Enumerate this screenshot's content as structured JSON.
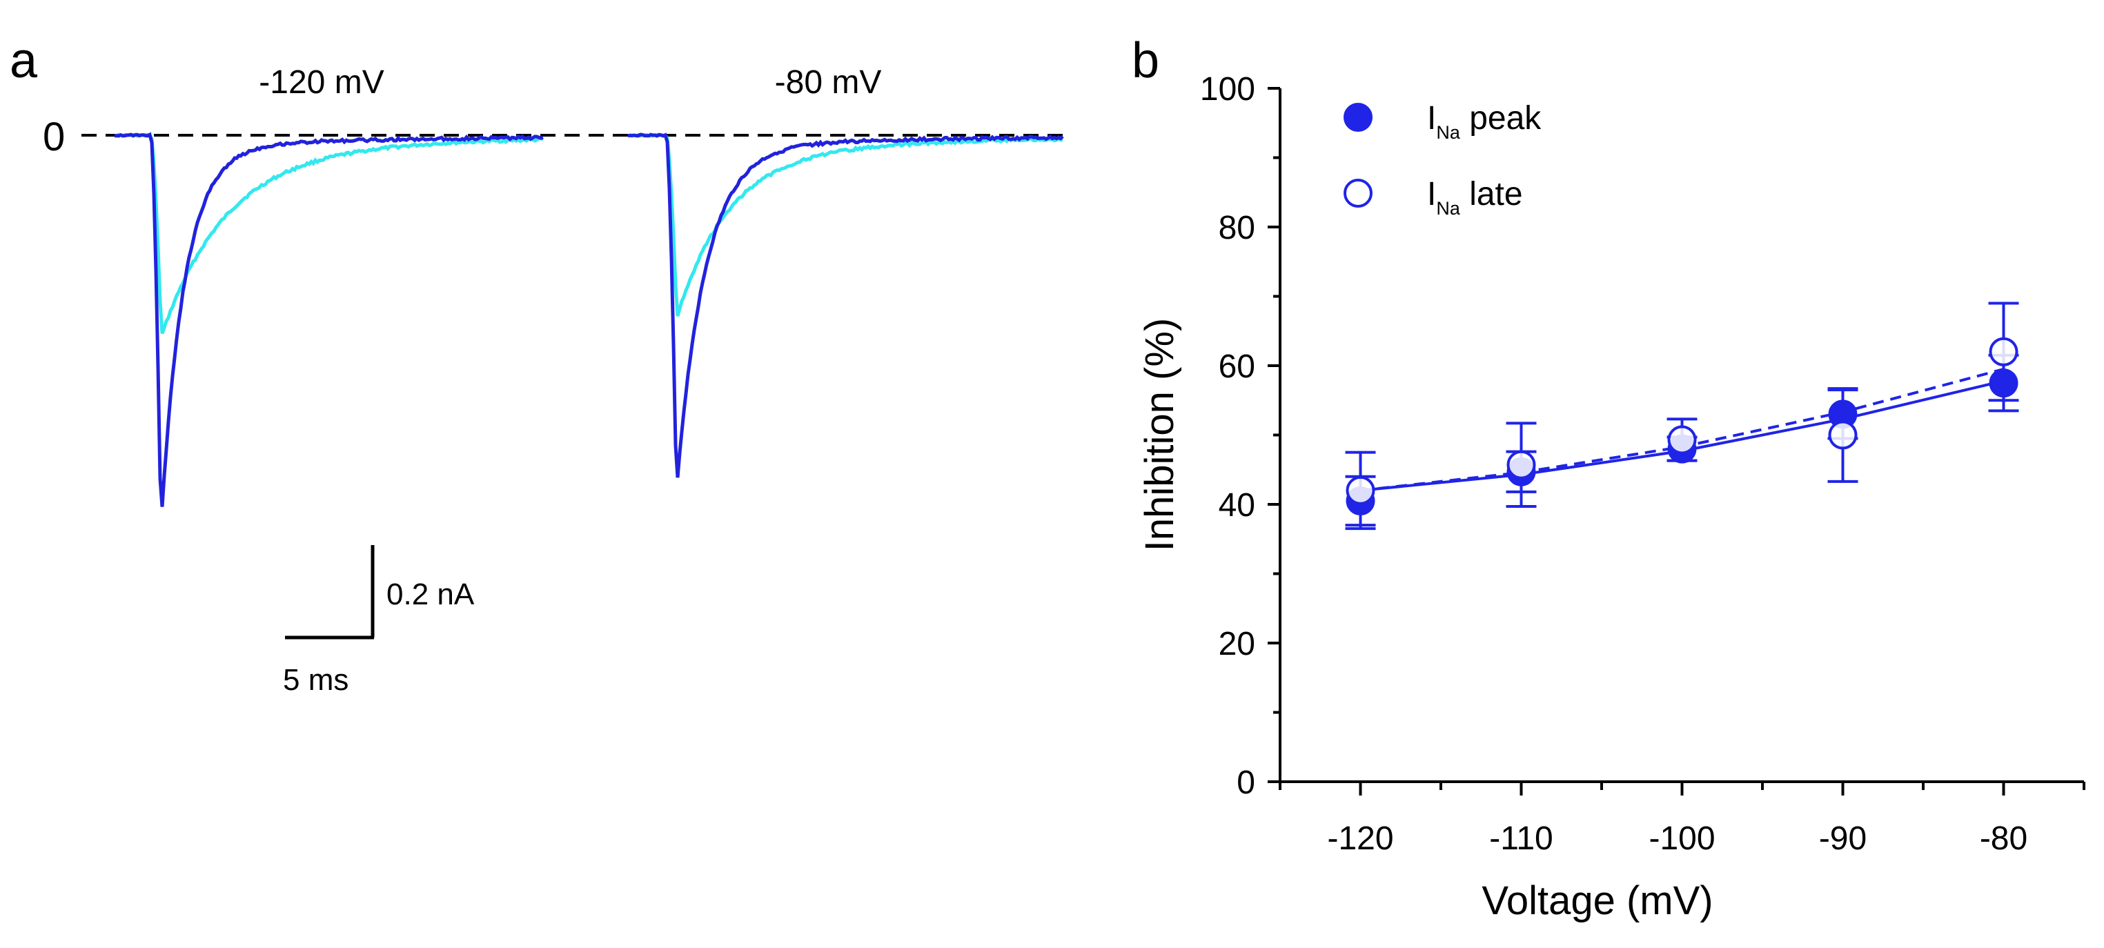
{
  "colors": {
    "control": "#2222dd",
    "drug": "#33e8ee",
    "fit": "#1f24e6",
    "axis": "#000000"
  },
  "panel_a": {
    "label": "a",
    "zero_label": "0",
    "conditions": [
      {
        "label": "-120 mV",
        "peak_nA": -0.83,
        "drug_peak_nA": -0.4,
        "tau_ms": 1.3,
        "drug_tau_ms": 3.6
      },
      {
        "label": "-80 mV",
        "peak_nA": -0.75,
        "drug_peak_nA": -0.36,
        "tau_ms": 1.6,
        "drug_tau_ms": 2.9
      }
    ],
    "scale_bar": {
      "current_label": "0.2 nA",
      "current_nA": 0.2,
      "time_label": "5 ms",
      "time_ms": 5
    }
  },
  "chart_data": {
    "type": "scatter",
    "panel_label": "b",
    "xlabel": "Voltage (mV)",
    "ylabel": "Inhibition (%)",
    "xlim": [
      -125,
      -75
    ],
    "ylim": [
      0,
      100
    ],
    "x_ticks": [
      -120,
      -110,
      -100,
      -90,
      -80
    ],
    "y_ticks": [
      0,
      20,
      40,
      60,
      80,
      100
    ],
    "x_tick_labels": [
      "-120",
      "-110",
      "-100",
      "-90",
      "-80"
    ],
    "y_tick_labels": [
      "0",
      "20",
      "40",
      "60",
      "80",
      "100"
    ],
    "legend_position": "top-left",
    "series": [
      {
        "name": "INa peak",
        "legend_main": "I",
        "legend_sub": "Na",
        "legend_rest": " peak",
        "marker": "filled-circle",
        "line": "solid",
        "x": [
          -120,
          -110,
          -100,
          -90,
          -80
        ],
        "y": [
          40.5,
          44.7,
          48.0,
          53.0,
          57.5
        ],
        "err": [
          3.5,
          2.9,
          1.7,
          3.5,
          4.0
        ],
        "fit_y": [
          42.0,
          44.3,
          47.7,
          52.3,
          57.8
        ]
      },
      {
        "name": "INa late",
        "legend_main": "I",
        "legend_sub": "Na",
        "legend_rest": " late",
        "marker": "open-circle",
        "line": "dashed",
        "x": [
          -120,
          -110,
          -100,
          -90,
          -80
        ],
        "y": [
          42.0,
          45.7,
          49.3,
          50.0,
          62.0
        ],
        "err": [
          5.5,
          6.0,
          3.0,
          6.7,
          7.0
        ],
        "fit_y": [
          42.0,
          44.6,
          48.3,
          53.3,
          59.5
        ]
      }
    ]
  }
}
